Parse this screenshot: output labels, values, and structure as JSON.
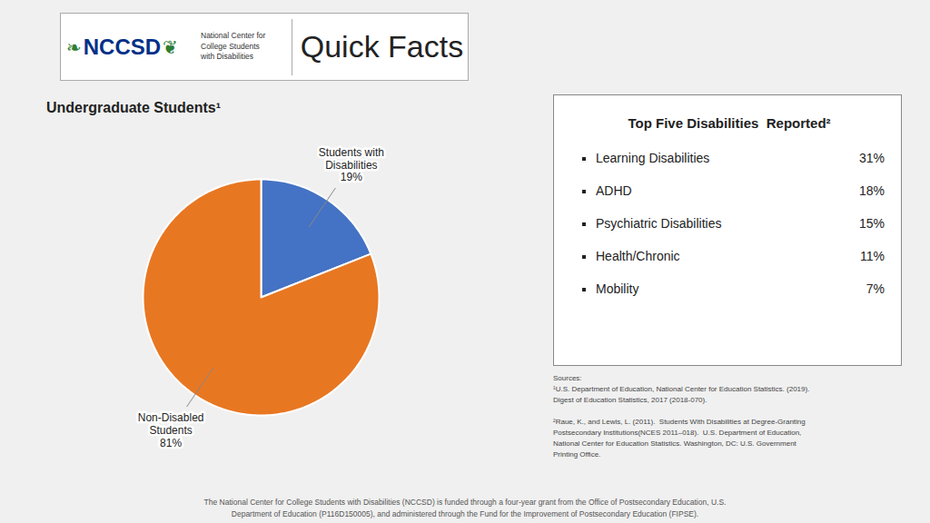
{
  "chart_data": [
    {
      "type": "pie",
      "title": "Quick Facts",
      "subtitle": "Undergraduate Students¹",
      "categories": [
        "Students with\nDisabilities",
        "Non-Disabled\nStudents"
      ],
      "values": [
        19,
        81
      ],
      "value_labels": [
        "19%",
        "81%"
      ],
      "data_labels": true,
      "colors": [
        "#4472C4",
        "#E87722"
      ],
      "logo_text": "NCCSD",
      "logo_color": "#003087",
      "logo_ornaments": [
        "❧",
        "❦"
      ],
      "ornament_color": "#2e7d32",
      "logo_subtitle": "National Center for\nCollege Students\nwith Disabilities",
      "sources": "Sources:\n¹U.S. Department of Education, National Center for Education Statistics. (2019).\nDigest of Education Statistics, 2017 (2018-070).\n\n²Raue, K., and Lewis, L. (2011).  Students With Disabilities at Degree-Granting\nPostsecondary Institutions(NCES 2011–018).  U.S. Department of Education,\nNational Center for Education Statistics. Washington, DC: U.S. Government\nPrinting Office.",
      "footer": "The National Center for College Students with Disabilities (NCCSD) is funded through a four-year grant from the Office of Postsecondary Education, U.S.\nDepartment of Education (P116D150005), and administered through the Fund for the Improvement of Postsecondary Education (FIPSE)."
    },
    {
      "type": "table",
      "title": "Top Five Disabilities  Reported²",
      "categories": [
        "Learning Disabilities",
        "ADHD",
        "Psychiatric Disabilities",
        "Health/Chronic",
        "Mobility"
      ],
      "values": [
        31,
        18,
        15,
        11,
        7
      ],
      "value_labels": [
        "31%",
        "18%",
        "15%",
        "11%",
        "7%"
      ]
    }
  ]
}
